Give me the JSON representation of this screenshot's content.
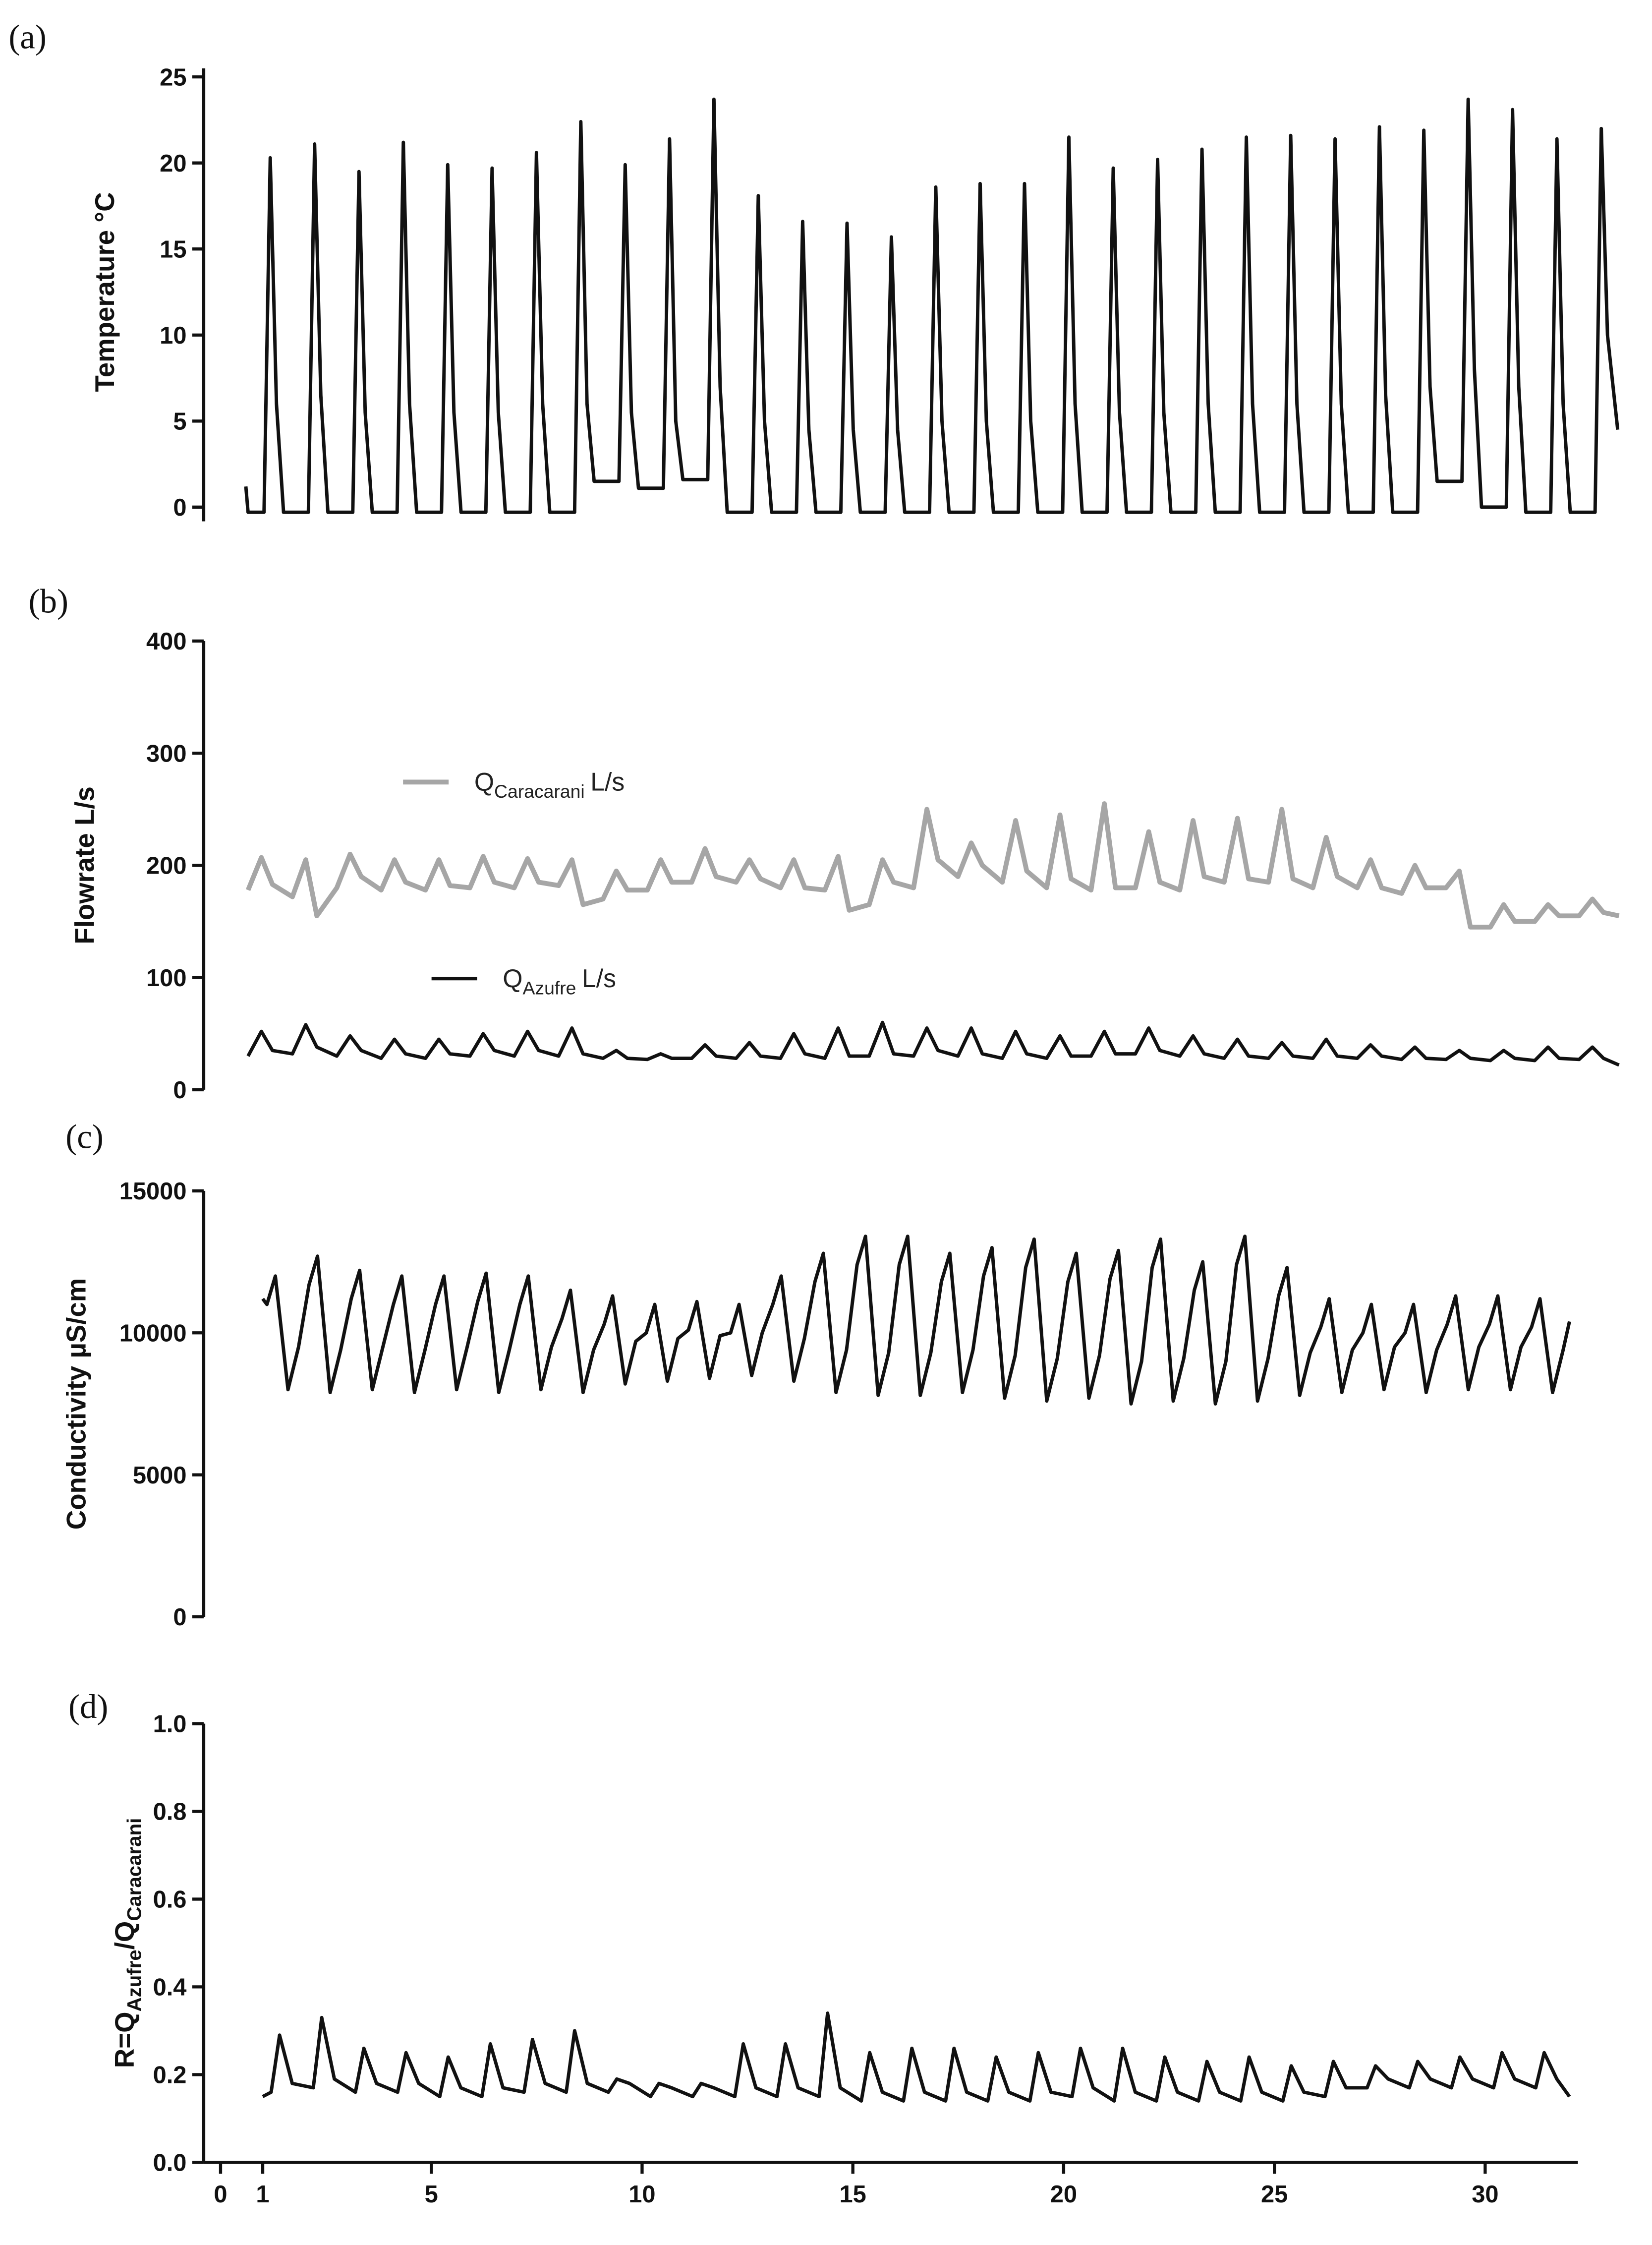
{
  "chart_data": [
    {
      "type": "line",
      "panel_label": "(a)",
      "ylabel": [
        "Temperature °C"
      ],
      "xlim": [
        0,
        32
      ],
      "ylim": [
        0,
        25
      ],
      "yticks": [
        0,
        5,
        10,
        15,
        20,
        25
      ],
      "x": [
        0.95,
        1.0,
        1.36,
        1.5,
        1.64,
        1.8,
        2.36,
        2.5,
        2.64,
        2.8,
        3.36,
        3.5,
        3.64,
        3.8,
        4.36,
        4.5,
        4.64,
        4.8,
        5.36,
        5.5,
        5.64,
        5.8,
        6.36,
        6.5,
        6.64,
        6.8,
        7.36,
        7.5,
        7.64,
        7.8,
        8.36,
        8.5,
        8.64,
        8.8,
        9.36,
        9.5,
        9.64,
        9.8,
        10.36,
        10.5,
        10.64,
        10.8,
        11.36,
        11.5,
        11.64,
        11.8,
        12.36,
        12.5,
        12.64,
        12.8,
        13.36,
        13.5,
        13.64,
        13.8,
        14.36,
        14.5,
        14.64,
        14.8,
        15.36,
        15.5,
        15.64,
        15.8,
        16.36,
        16.5,
        16.64,
        16.8,
        17.36,
        17.5,
        17.64,
        17.8,
        18.36,
        18.5,
        18.64,
        18.8,
        19.36,
        19.5,
        19.64,
        19.8,
        20.36,
        20.5,
        20.64,
        20.8,
        21.36,
        21.5,
        21.64,
        21.8,
        22.36,
        22.5,
        22.64,
        22.8,
        23.36,
        23.5,
        23.64,
        23.8,
        24.36,
        24.5,
        24.64,
        24.8,
        25.36,
        25.5,
        25.64,
        25.8,
        26.36,
        26.5,
        26.64,
        26.8,
        27.36,
        27.5,
        27.64,
        27.8,
        28.36,
        28.5,
        28.64,
        28.8,
        29.36,
        29.5,
        29.64,
        29.8,
        30.36,
        30.5,
        30.64,
        30.8,
        31.36,
        31.5,
        31.64,
        31.87
      ],
      "series": [
        {
          "color": "#111111",
          "values": [
            1.2,
            -0.3,
            -0.3,
            20.3,
            6,
            -0.3,
            -0.3,
            21.1,
            6.5,
            -0.3,
            -0.3,
            19.5,
            5.5,
            -0.3,
            -0.3,
            21.2,
            6,
            -0.3,
            -0.3,
            19.9,
            5.5,
            -0.3,
            -0.3,
            19.7,
            5.5,
            -0.3,
            -0.3,
            20.6,
            6,
            -0.3,
            -0.3,
            22.4,
            6,
            1.5,
            1.5,
            19.9,
            5.5,
            1.1,
            1.1,
            21.4,
            5,
            1.6,
            1.6,
            23.7,
            7,
            -0.3,
            -0.3,
            18.1,
            5,
            -0.3,
            -0.3,
            16.6,
            4.5,
            -0.3,
            -0.3,
            16.5,
            4.5,
            -0.3,
            -0.3,
            15.7,
            4.5,
            -0.3,
            -0.3,
            18.6,
            5,
            -0.3,
            -0.3,
            18.8,
            5,
            -0.3,
            -0.3,
            18.8,
            5,
            -0.3,
            -0.3,
            21.5,
            6,
            -0.3,
            -0.3,
            19.7,
            5.5,
            -0.3,
            -0.3,
            20.2,
            5.5,
            -0.3,
            -0.3,
            20.8,
            6,
            -0.3,
            -0.3,
            21.5,
            6,
            -0.3,
            -0.3,
            21.6,
            6,
            -0.3,
            -0.3,
            21.4,
            6,
            -0.3,
            -0.3,
            22.1,
            6.5,
            -0.3,
            -0.3,
            21.9,
            7,
            1.5,
            1.5,
            23.7,
            8,
            0,
            0,
            23.1,
            7,
            -0.3,
            -0.3,
            21.4,
            6,
            -0.3,
            -0.3,
            22.0,
            10,
            4.5
          ]
        }
      ]
    },
    {
      "type": "line",
      "panel_label": "(b)",
      "ylabel": [
        "Flowrate L/s"
      ],
      "xlim": [
        0,
        32
      ],
      "ylim": [
        0,
        400
      ],
      "yticks": [
        0,
        100,
        200,
        300,
        400
      ],
      "x": [
        1.0,
        1.3,
        1.55,
        2.0,
        2.3,
        2.55,
        3.0,
        3.3,
        3.55,
        4.0,
        4.3,
        4.55,
        5.0,
        5.3,
        5.55,
        6.0,
        6.3,
        6.55,
        7.0,
        7.3,
        7.55,
        8.0,
        8.3,
        8.55,
        9.0,
        9.3,
        9.55,
        10.0,
        10.3,
        10.55,
        11.0,
        11.3,
        11.55,
        12.0,
        12.3,
        12.55,
        13.0,
        13.3,
        13.55,
        14.0,
        14.3,
        14.55,
        15.0,
        15.3,
        15.55,
        16.0,
        16.3,
        16.55,
        17.0,
        17.3,
        17.55,
        18.0,
        18.3,
        18.55,
        19.0,
        19.3,
        19.55,
        20.0,
        20.3,
        20.55,
        21.0,
        21.3,
        21.55,
        22.0,
        22.3,
        22.55,
        23.0,
        23.3,
        23.55,
        24.0,
        24.3,
        24.55,
        25.0,
        25.3,
        25.55,
        26.0,
        26.3,
        26.55,
        27.0,
        27.3,
        27.55,
        28.0,
        28.3,
        28.55,
        29.0,
        29.3,
        29.55,
        30.0,
        30.3,
        30.55,
        31.0,
        31.3,
        31.55,
        31.9
      ],
      "series": [
        {
          "name": [
            "Q",
            "Caracarani",
            "L/s"
          ],
          "color": "#a6a6a6",
          "values": [
            178,
            207,
            183,
            172,
            205,
            155,
            180,
            210,
            190,
            178,
            205,
            185,
            178,
            205,
            182,
            180,
            208,
            185,
            180,
            206,
            185,
            182,
            205,
            165,
            170,
            195,
            178,
            178,
            205,
            185,
            185,
            215,
            190,
            185,
            205,
            188,
            180,
            205,
            180,
            178,
            208,
            160,
            165,
            205,
            185,
            180,
            250,
            205,
            190,
            220,
            200,
            185,
            240,
            195,
            180,
            245,
            188,
            178,
            255,
            180,
            180,
            230,
            185,
            178,
            240,
            190,
            185,
            242,
            188,
            185,
            250,
            188,
            180,
            225,
            190,
            180,
            205,
            180,
            175,
            200,
            180,
            180,
            195,
            145,
            145,
            165,
            150,
            150,
            165,
            155,
            155,
            170,
            158,
            155
          ]
        },
        {
          "name": [
            "Q",
            "Azufre",
            "L/s"
          ],
          "color": "#111111",
          "values": [
            30,
            52,
            35,
            32,
            58,
            38,
            30,
            48,
            35,
            28,
            45,
            32,
            28,
            45,
            32,
            30,
            50,
            35,
            30,
            52,
            35,
            30,
            55,
            32,
            28,
            35,
            28,
            27,
            32,
            28,
            28,
            40,
            30,
            28,
            42,
            30,
            28,
            50,
            32,
            28,
            55,
            30,
            30,
            60,
            32,
            30,
            55,
            35,
            30,
            55,
            32,
            28,
            52,
            32,
            28,
            48,
            30,
            30,
            52,
            32,
            32,
            55,
            35,
            30,
            48,
            32,
            28,
            45,
            30,
            28,
            42,
            30,
            28,
            45,
            30,
            28,
            40,
            30,
            27,
            38,
            28,
            27,
            35,
            28,
            26,
            35,
            28,
            26,
            38,
            28,
            27,
            38,
            28,
            22
          ]
        }
      ]
    },
    {
      "type": "line",
      "panel_label": "(c)",
      "ylabel": [
        "Conductivity µS/cm"
      ],
      "xlim": [
        -0.4,
        32.2
      ],
      "ylim": [
        0,
        15000
      ],
      "yticks": [
        0,
        5000,
        10000,
        15000
      ],
      "x": [
        1.0,
        1.1,
        1.3,
        1.6,
        1.85,
        2.1,
        2.3,
        2.6,
        2.85,
        3.1,
        3.3,
        3.6,
        3.85,
        4.1,
        4.3,
        4.6,
        4.85,
        5.1,
        5.3,
        5.6,
        5.85,
        6.1,
        6.3,
        6.6,
        6.85,
        7.1,
        7.3,
        7.6,
        7.85,
        8.1,
        8.3,
        8.6,
        8.85,
        9.1,
        9.3,
        9.6,
        9.85,
        10.1,
        10.3,
        10.6,
        10.85,
        11.1,
        11.3,
        11.6,
        11.85,
        12.1,
        12.3,
        12.6,
        12.85,
        13.1,
        13.3,
        13.6,
        13.85,
        14.1,
        14.3,
        14.6,
        14.85,
        15.1,
        15.3,
        15.6,
        15.85,
        16.1,
        16.3,
        16.6,
        16.85,
        17.1,
        17.3,
        17.6,
        17.85,
        18.1,
        18.3,
        18.6,
        18.85,
        19.1,
        19.3,
        19.6,
        19.85,
        20.1,
        20.3,
        20.6,
        20.85,
        21.1,
        21.3,
        21.6,
        21.85,
        22.1,
        22.3,
        22.6,
        22.85,
        23.1,
        23.3,
        23.6,
        23.85,
        24.1,
        24.3,
        24.6,
        24.85,
        25.1,
        25.3,
        25.6,
        25.85,
        26.1,
        26.3,
        26.6,
        26.85,
        27.1,
        27.3,
        27.6,
        27.85,
        28.1,
        28.3,
        28.6,
        28.85,
        29.1,
        29.3,
        29.6,
        29.85,
        30.1,
        30.3,
        30.6,
        30.85,
        31.1,
        31.3,
        31.6,
        31.85,
        32.0
      ],
      "series": [
        {
          "color": "#111111",
          "values": [
            11200,
            11000,
            12000,
            8000,
            9500,
            11700,
            12700,
            7900,
            9400,
            11200,
            12200,
            8000,
            9500,
            11000,
            12000,
            7900,
            9400,
            11000,
            12000,
            8000,
            9500,
            11100,
            12100,
            7900,
            9400,
            11000,
            12000,
            8000,
            9500,
            10500,
            11500,
            7900,
            9400,
            10300,
            11300,
            8200,
            9700,
            10000,
            11000,
            8300,
            9800,
            10100,
            11100,
            8400,
            9900,
            10000,
            11000,
            8500,
            10000,
            11000,
            12000,
            8300,
            9800,
            11800,
            12800,
            7900,
            9400,
            12400,
            13400,
            7800,
            9300,
            12400,
            13400,
            7800,
            9300,
            11800,
            12800,
            7900,
            9400,
            12000,
            13000,
            7700,
            9200,
            12300,
            13300,
            7600,
            9100,
            11800,
            12800,
            7700,
            9200,
            11900,
            12900,
            7500,
            9000,
            12300,
            13300,
            7600,
            9100,
            11500,
            12500,
            7500,
            9000,
            12400,
            13400,
            7600,
            9100,
            11300,
            12300,
            7800,
            9300,
            10200,
            11200,
            7900,
            9400,
            10000,
            11000,
            8000,
            9500,
            10000,
            11000,
            7900,
            9400,
            10300,
            11300,
            8000,
            9500,
            10300,
            11300,
            8000,
            9500,
            10200,
            11200,
            7900,
            9400,
            10400
          ]
        }
      ]
    },
    {
      "type": "line",
      "panel_label": "(d)",
      "ylabel": [
        "R=Q",
        "Azufre",
        "/Q",
        "Caracarani"
      ],
      "xlim": [
        -0.4,
        32.2
      ],
      "ylim": [
        0,
        1
      ],
      "xticks": [
        0,
        1,
        5,
        10,
        15,
        20,
        25,
        30
      ],
      "yticks": [
        {
          "value": 0,
          "label": "0.0"
        },
        0.2,
        0.4,
        0.6,
        0.8,
        {
          "value": 1,
          "label": "1.0"
        }
      ],
      "x": [
        1.0,
        1.2,
        1.4,
        1.7,
        2.2,
        2.4,
        2.7,
        3.2,
        3.4,
        3.7,
        4.2,
        4.4,
        4.7,
        5.2,
        5.4,
        5.7,
        6.2,
        6.4,
        6.7,
        7.2,
        7.4,
        7.7,
        8.2,
        8.4,
        8.7,
        9.2,
        9.4,
        9.7,
        10.2,
        10.4,
        10.7,
        11.2,
        11.4,
        11.7,
        12.2,
        12.4,
        12.7,
        13.2,
        13.4,
        13.7,
        14.2,
        14.4,
        14.7,
        15.2,
        15.4,
        15.7,
        16.2,
        16.4,
        16.7,
        17.2,
        17.4,
        17.7,
        18.2,
        18.4,
        18.7,
        19.2,
        19.4,
        19.7,
        20.2,
        20.4,
        20.7,
        21.2,
        21.4,
        21.7,
        22.2,
        22.4,
        22.7,
        23.2,
        23.4,
        23.7,
        24.2,
        24.4,
        24.7,
        25.2,
        25.4,
        25.7,
        26.2,
        26.4,
        26.7,
        27.2,
        27.4,
        27.7,
        28.2,
        28.4,
        28.7,
        29.2,
        29.4,
        29.7,
        30.2,
        30.4,
        30.7,
        31.2,
        31.4,
        31.7,
        32.0
      ],
      "series": [
        {
          "color": "#111111",
          "values": [
            0.15,
            0.16,
            0.29,
            0.18,
            0.17,
            0.33,
            0.19,
            0.16,
            0.26,
            0.18,
            0.16,
            0.25,
            0.18,
            0.15,
            0.24,
            0.17,
            0.15,
            0.27,
            0.17,
            0.16,
            0.28,
            0.18,
            0.16,
            0.3,
            0.18,
            0.16,
            0.19,
            0.18,
            0.15,
            0.18,
            0.17,
            0.15,
            0.18,
            0.17,
            0.15,
            0.27,
            0.17,
            0.15,
            0.27,
            0.17,
            0.15,
            0.34,
            0.17,
            0.14,
            0.25,
            0.16,
            0.14,
            0.26,
            0.16,
            0.14,
            0.26,
            0.16,
            0.14,
            0.24,
            0.16,
            0.14,
            0.25,
            0.16,
            0.15,
            0.26,
            0.17,
            0.14,
            0.26,
            0.16,
            0.14,
            0.24,
            0.16,
            0.14,
            0.23,
            0.16,
            0.14,
            0.24,
            0.16,
            0.14,
            0.22,
            0.16,
            0.15,
            0.23,
            0.17,
            0.17,
            0.22,
            0.19,
            0.17,
            0.23,
            0.19,
            0.17,
            0.24,
            0.19,
            0.17,
            0.25,
            0.19,
            0.17,
            0.25,
            0.19,
            0.15
          ]
        }
      ]
    }
  ]
}
